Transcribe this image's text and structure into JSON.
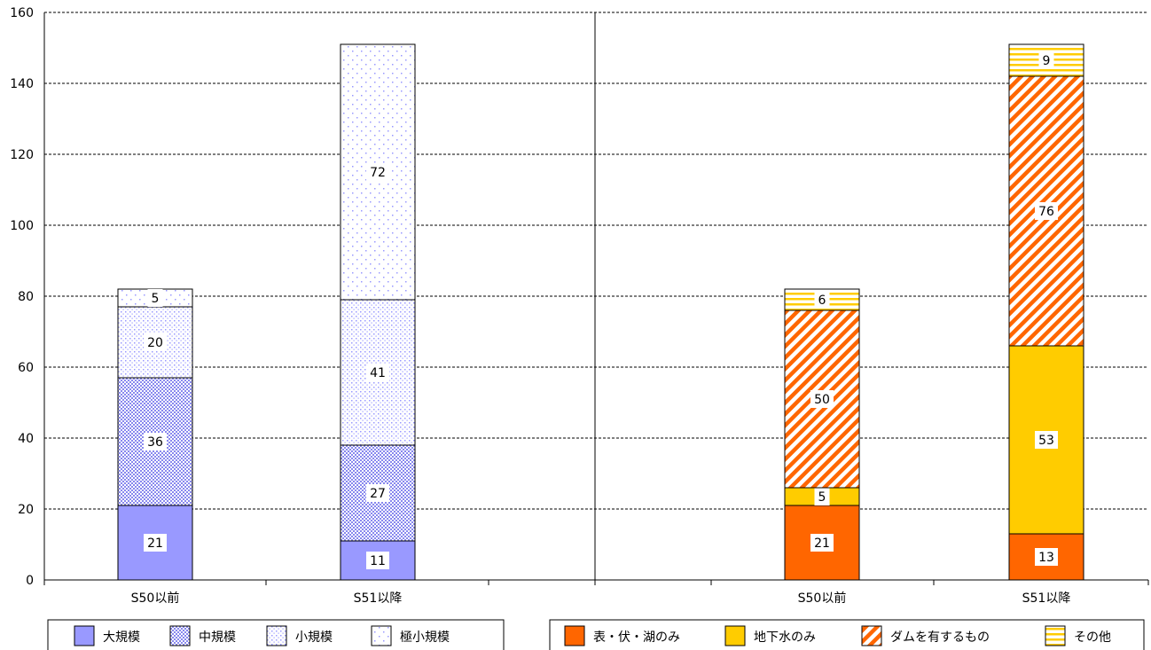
{
  "chart_data": {
    "type": "bar",
    "stacked": true,
    "y_axis": {
      "min": 0,
      "max": 160,
      "ticks": [
        0,
        20,
        40,
        60,
        80,
        100,
        120,
        140,
        160
      ]
    },
    "grid": true,
    "panels": [
      {
        "categories": [
          "S50以前",
          "S51以降"
        ],
        "series": [
          {
            "name": "大規模",
            "values": [
              21,
              11
            ],
            "color": "#9999ff",
            "pattern": "solid"
          },
          {
            "name": "中規模",
            "values": [
              36,
              27
            ],
            "color": "#9999ff",
            "pattern": "dense-dots"
          },
          {
            "name": "小規模",
            "values": [
              20,
              41
            ],
            "color": "#9999ff",
            "pattern": "medium-dots"
          },
          {
            "name": "極小規模",
            "values": [
              5,
              72
            ],
            "color": "#9999ff",
            "pattern": "sparse-dots"
          }
        ]
      },
      {
        "categories": [
          "S50以前",
          "S51以降"
        ],
        "series": [
          {
            "name": "表・伏・湖のみ",
            "values": [
              21,
              13
            ],
            "color": "#ff6600",
            "pattern": "solid"
          },
          {
            "name": "地下水のみ",
            "values": [
              5,
              53
            ],
            "color": "#ffcc00",
            "pattern": "solid"
          },
          {
            "name": "ダムを有するもの",
            "values": [
              50,
              76
            ],
            "color": "#ff6600",
            "pattern": "diagonal"
          },
          {
            "name": "その他",
            "values": [
              6,
              9
            ],
            "color": "#ffcc00",
            "pattern": "horizontal"
          }
        ]
      }
    ]
  }
}
